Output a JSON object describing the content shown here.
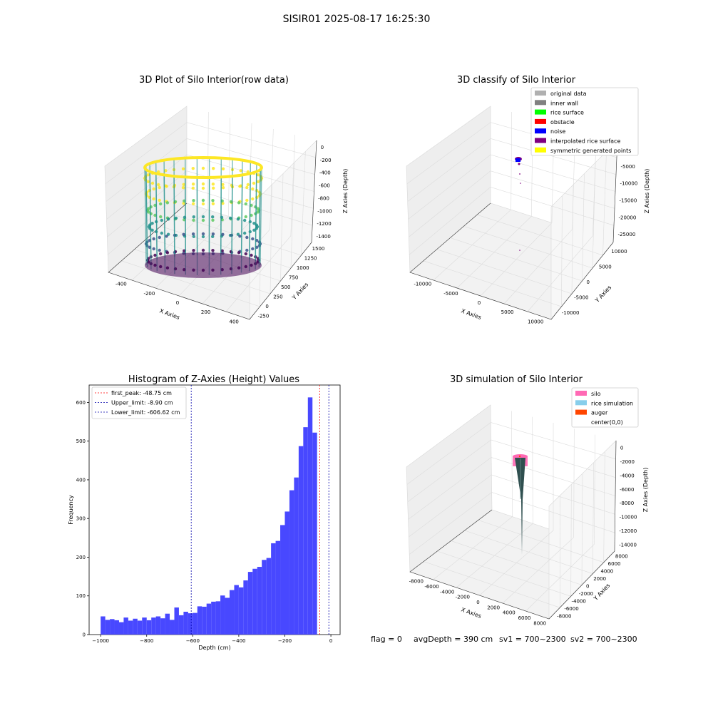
{
  "figure_title": "SISIR01 2025-08-17 16:25:30",
  "footer": {
    "flag": "flag = 0",
    "avg_depth": "avgDepth = 390 cm",
    "sv1": "sv1 = 700~2300",
    "sv2": "sv2 = 700~2300"
  },
  "chart_data": [
    {
      "type": "scatter",
      "title": "3D Plot of Silo Interior(row data)",
      "xlabel": "X Axies",
      "ylabel": "Y Axies",
      "zlabel": "Z Axies (Depth)",
      "x_ticks": [
        "-400",
        "-200",
        "0",
        "200",
        "400"
      ],
      "y_ticks": [
        "-250",
        "0",
        "250",
        "500",
        "750",
        "1000",
        "1250",
        "1500"
      ],
      "z_ticks": [
        "0",
        "-200",
        "-400",
        "-600",
        "-800",
        "-1000",
        "-1200",
        "-1400"
      ],
      "colormap": [
        "#440154",
        "#3b528b",
        "#21918c",
        "#5ec962",
        "#fde725"
      ]
    },
    {
      "type": "scatter",
      "title": "3D classify of Silo Interior",
      "xlabel": "X Axies",
      "ylabel": "Y Axies",
      "zlabel": "Z Axies (Depth)",
      "x_ticks": [
        "-10000",
        "-5000",
        "0",
        "5000",
        "10000"
      ],
      "y_ticks": [
        "-10000",
        "-5000",
        "0",
        "5000",
        "10000"
      ],
      "z_ticks": [
        "0",
        "-5000",
        "-10000",
        "-15000",
        "-20000",
        "-25000"
      ],
      "legend": [
        {
          "label": "original data",
          "color": "#b0b0b0"
        },
        {
          "label": "inner wall",
          "color": "#808080"
        },
        {
          "label": "rice surface",
          "color": "#00ff00"
        },
        {
          "label": "obstacle",
          "color": "#ff0000"
        },
        {
          "label": "noise",
          "color": "#0000ff"
        },
        {
          "label": "interpolated rice surface",
          "color": "#800080"
        },
        {
          "label": "symmetric generated points",
          "color": "#ffff00"
        }
      ]
    },
    {
      "type": "bar",
      "title": "Histogram of Z-Axies (Height) Values",
      "xlabel": "Depth (cm)",
      "ylabel": "Frequency",
      "xlim": [
        -1050,
        40
      ],
      "ylim": [
        0,
        645
      ],
      "x_ticks": [
        -1000,
        -800,
        -600,
        -400,
        -200,
        0
      ],
      "x_tick_labels": [
        "−1000",
        "−800",
        "−600",
        "−400",
        "−200",
        "0"
      ],
      "y_ticks": [
        0,
        100,
        200,
        300,
        400,
        500,
        600
      ],
      "bin_start": -1000,
      "bin_width": 20,
      "values": [
        47,
        38,
        40,
        37,
        32,
        44,
        36,
        41,
        36,
        44,
        37,
        44,
        47,
        42,
        54,
        38,
        70,
        50,
        59,
        55,
        56,
        73,
        72,
        80,
        85,
        86,
        101,
        95,
        115,
        128,
        122,
        140,
        162,
        170,
        175,
        193,
        198,
        236,
        242,
        283,
        318,
        373,
        406,
        487,
        536,
        613,
        522
      ],
      "bar_color": "#4848ff",
      "vlines": [
        {
          "label": "first_peak: -48.75 cm",
          "x": -48.75,
          "color": "#ff0000"
        },
        {
          "label": "Upper_limit: -8.90 cm",
          "x": -8.9,
          "color": "#0000aa"
        },
        {
          "label": "Lower_limit: -606.62 cm",
          "x": -606.62,
          "color": "#0000aa"
        }
      ]
    },
    {
      "type": "scatter",
      "title": "3D simulation of Silo Interior",
      "xlabel": "X Axies",
      "ylabel": "Y Axies",
      "zlabel": "Z Axies (Depth)",
      "x_ticks": [
        "-8000",
        "-6000",
        "-4000",
        "-2000",
        "0",
        "2000",
        "4000",
        "6000",
        "8000"
      ],
      "y_ticks": [
        "-8000",
        "-6000",
        "-4000",
        "-2000",
        "0",
        "2000",
        "4000",
        "6000",
        "8000"
      ],
      "z_ticks": [
        "0",
        "-2000",
        "-4000",
        "-6000",
        "-8000",
        "-10000",
        "-12000",
        "-14000"
      ],
      "legend": [
        {
          "label": "silo",
          "color": "#ff69b4"
        },
        {
          "label": "rice simulation",
          "color": "#87ceeb"
        },
        {
          "label": "auger",
          "color": "#ff4500"
        },
        {
          "label": "center(0,0)",
          "color": ""
        }
      ]
    }
  ]
}
